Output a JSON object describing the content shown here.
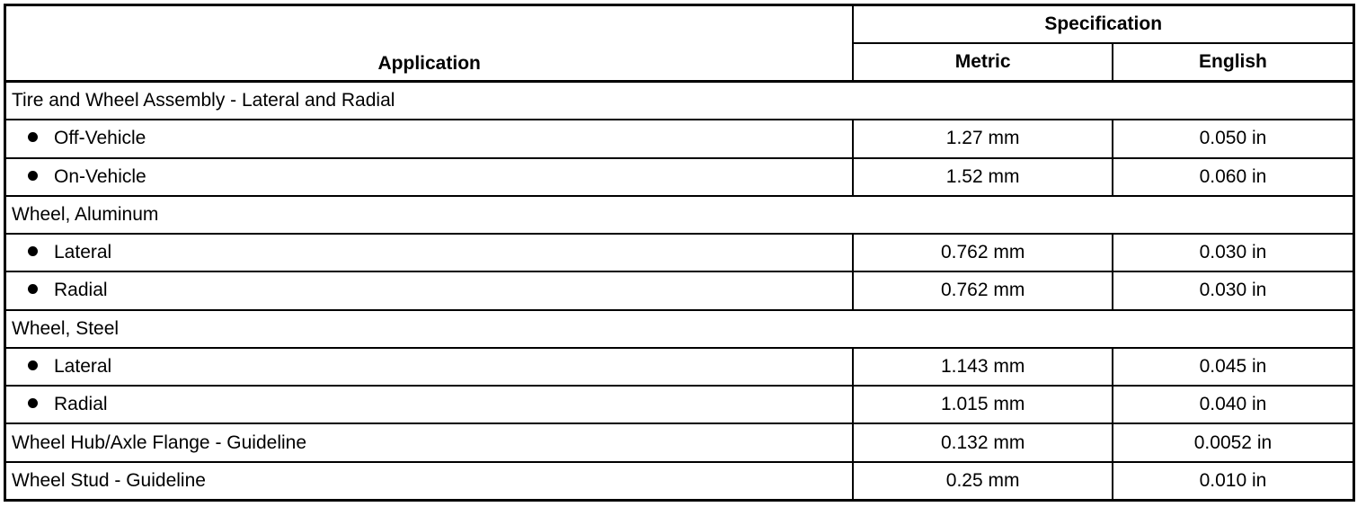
{
  "header": {
    "application": "Application",
    "specification": "Specification",
    "metric": "Metric",
    "english": "English"
  },
  "rows": [
    {
      "type": "group",
      "label": "Tire and Wheel Assembly - Lateral and Radial"
    },
    {
      "type": "item",
      "label": "Off-Vehicle",
      "metric": "1.27 mm",
      "english": "0.050 in"
    },
    {
      "type": "item",
      "label": "On-Vehicle",
      "metric": "1.52 mm",
      "english": "0.060 in"
    },
    {
      "type": "group",
      "label": "Wheel, Aluminum"
    },
    {
      "type": "item",
      "label": "Lateral",
      "metric": "0.762 mm",
      "english": "0.030 in"
    },
    {
      "type": "item",
      "label": "Radial",
      "metric": "0.762 mm",
      "english": "0.030 in"
    },
    {
      "type": "group",
      "label": "Wheel, Steel"
    },
    {
      "type": "item",
      "label": "Lateral",
      "metric": "1.143 mm",
      "english": "0.045 in"
    },
    {
      "type": "item",
      "label": "Radial",
      "metric": "1.015 mm",
      "english": "0.040 in"
    },
    {
      "type": "plain",
      "label": "Wheel Hub/Axle Flange - Guideline",
      "metric": "0.132 mm",
      "english": "0.0052 in"
    },
    {
      "type": "plain",
      "label": "Wheel Stud - Guideline",
      "metric": "0.25 mm",
      "english": "0.010 in"
    }
  ]
}
